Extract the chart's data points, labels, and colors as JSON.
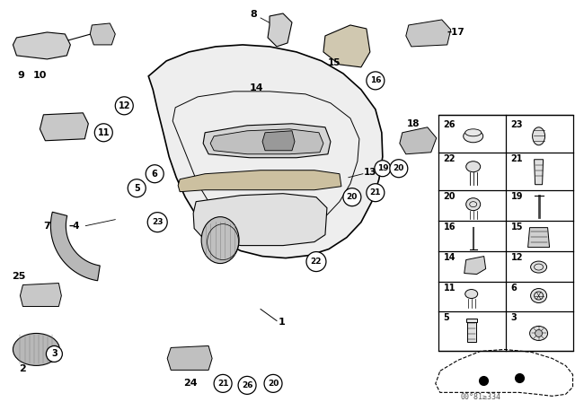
{
  "bg_color": "#ffffff",
  "fig_width": 6.4,
  "fig_height": 4.48,
  "watermark": "00°81≥334"
}
